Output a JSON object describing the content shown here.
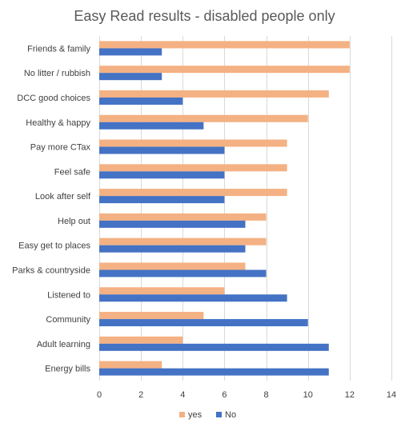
{
  "chart_data": {
    "type": "bar",
    "orientation": "horizontal",
    "title": "Easy Read results - disabled people only",
    "xlabel": "",
    "ylabel": "",
    "categories": [
      "Friends & family",
      "No litter / rubbish",
      "DCC good choices",
      "Healthy & happy",
      "Pay more CTax",
      "Feel safe",
      "Look after self",
      "Help out",
      "Easy get to places",
      "Parks & countryside",
      "Listened to",
      "Community",
      "Adult learning",
      "Energy bills"
    ],
    "series": [
      {
        "name": "yes",
        "color": "#F4B183",
        "values": [
          12,
          12,
          11,
          10,
          9,
          9,
          9,
          8,
          8,
          7,
          6,
          5,
          4,
          3
        ]
      },
      {
        "name": "No",
        "color": "#4472C4",
        "values": [
          3,
          3,
          4,
          5,
          6,
          6,
          6,
          7,
          7,
          8,
          9,
          10,
          11,
          11
        ]
      }
    ],
    "xlim": [
      0,
      14
    ],
    "xticks": [
      0,
      2,
      4,
      6,
      8,
      10,
      12,
      14
    ],
    "grid": true,
    "legend_position": "bottom"
  }
}
